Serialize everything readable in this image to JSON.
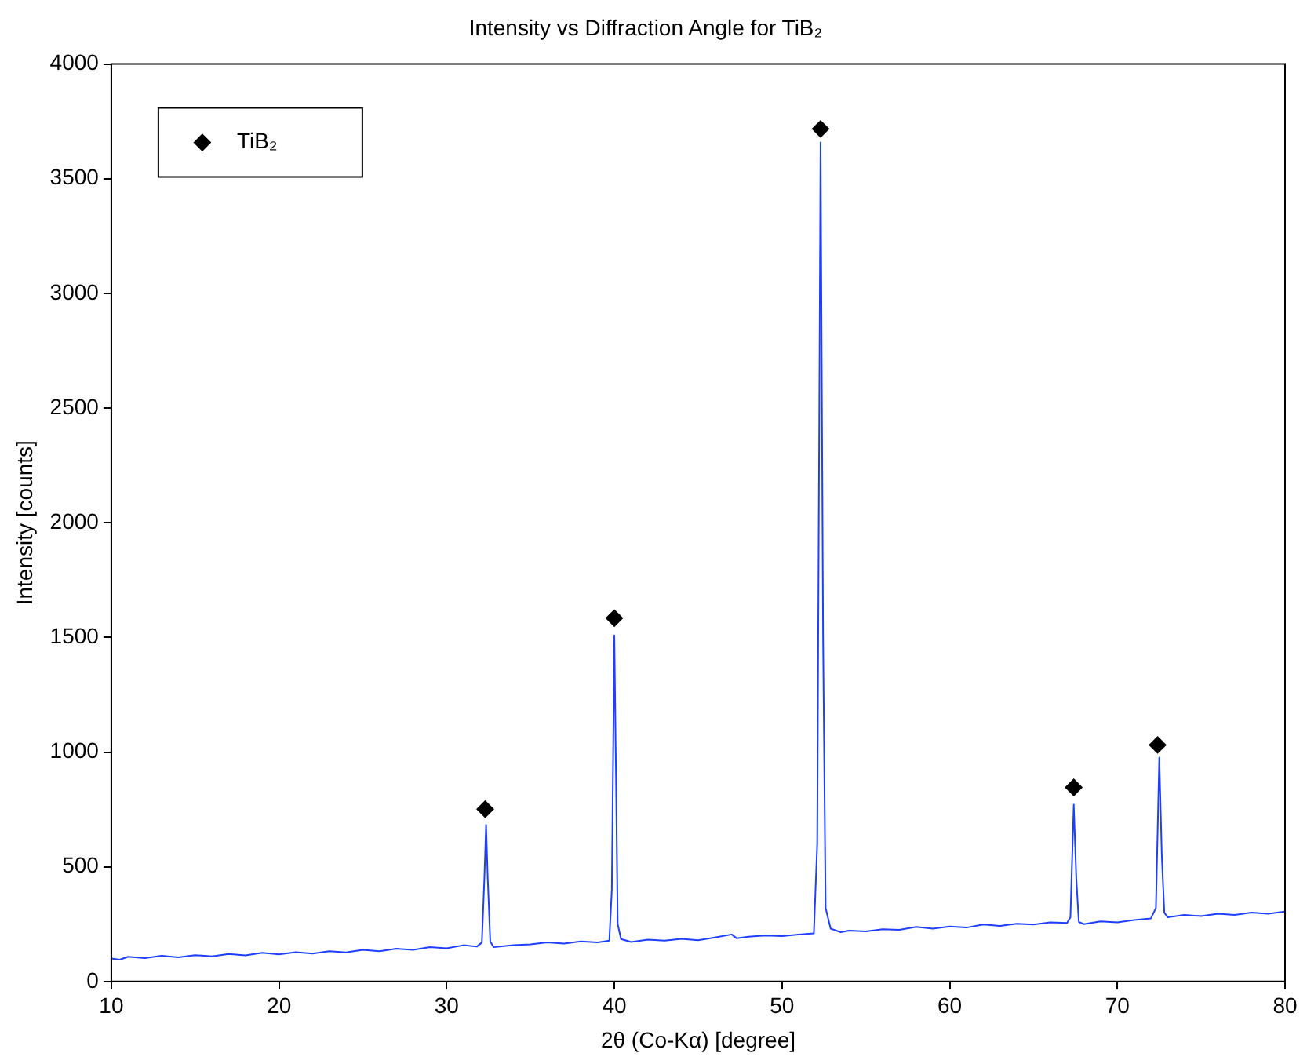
{
  "chart_data": {
    "type": "line",
    "title": "Intensity vs Diffraction Angle for TiB₂",
    "xlabel": "2θ (Co-Kα) [degree]",
    "ylabel": "Intensity [counts]",
    "xlim": [
      10,
      80
    ],
    "xticks": [
      10,
      20,
      30,
      40,
      50,
      60,
      70,
      80
    ],
    "ylim": [
      0,
      4000
    ],
    "yticks": [
      0,
      500,
      1000,
      1500,
      2000,
      2500,
      3000,
      3500,
      4000
    ],
    "grid": false,
    "legend": "top left",
    "series": [
      {
        "color": "#1f3fff",
        "marker": "none",
        "line_style": "solid",
        "x": [
          10,
          10.5,
          11,
          12,
          13,
          14,
          15,
          16,
          17,
          18,
          19,
          20,
          21,
          22,
          23,
          24,
          25,
          26,
          27,
          28,
          29,
          30,
          31,
          31.8,
          32.1,
          32.25,
          32.35,
          32.45,
          32.6,
          32.8,
          34,
          35,
          36,
          37,
          38,
          39,
          39.7,
          39.85,
          40.0,
          40.1,
          40.2,
          40.4,
          41,
          42,
          43,
          44,
          45,
          46,
          47,
          47.3,
          48,
          49,
          50,
          51,
          51.9,
          52.1,
          52.3,
          52.45,
          52.6,
          52.9,
          53.5,
          54,
          55,
          56,
          57,
          58,
          59,
          60,
          61,
          62,
          63,
          64,
          65,
          66,
          67,
          67.2,
          67.4,
          67.55,
          67.7,
          68,
          69,
          70,
          71,
          72,
          72.3,
          72.5,
          72.65,
          72.8,
          73,
          74,
          75,
          76,
          77,
          78,
          79,
          80
        ],
        "values": [
          100,
          95,
          108,
          102,
          112,
          105,
          115,
          110,
          120,
          114,
          125,
          118,
          128,
          122,
          132,
          127,
          138,
          132,
          143,
          138,
          150,
          145,
          158,
          152,
          170,
          450,
          683,
          450,
          175,
          150,
          158,
          162,
          170,
          165,
          175,
          170,
          178,
          400,
          1509,
          900,
          250,
          185,
          172,
          182,
          178,
          186,
          180,
          192,
          205,
          188,
          195,
          200,
          198,
          205,
          210,
          600,
          3658,
          1500,
          320,
          230,
          215,
          222,
          218,
          228,
          225,
          238,
          230,
          240,
          235,
          248,
          242,
          252,
          248,
          258,
          255,
          280,
          771,
          450,
          260,
          250,
          262,
          258,
          268,
          275,
          320,
          976,
          550,
          300,
          280,
          290,
          285,
          295,
          290,
          300,
          295,
          305
        ]
      },
      {
        "type": "scatter",
        "name": "TiB₂",
        "color": "#000000",
        "marker": "diamond",
        "x": [
          32.3,
          40.0,
          52.3,
          67.4,
          72.4
        ],
        "values": [
          751,
          1584,
          3717,
          846,
          1031
        ]
      }
    ]
  }
}
